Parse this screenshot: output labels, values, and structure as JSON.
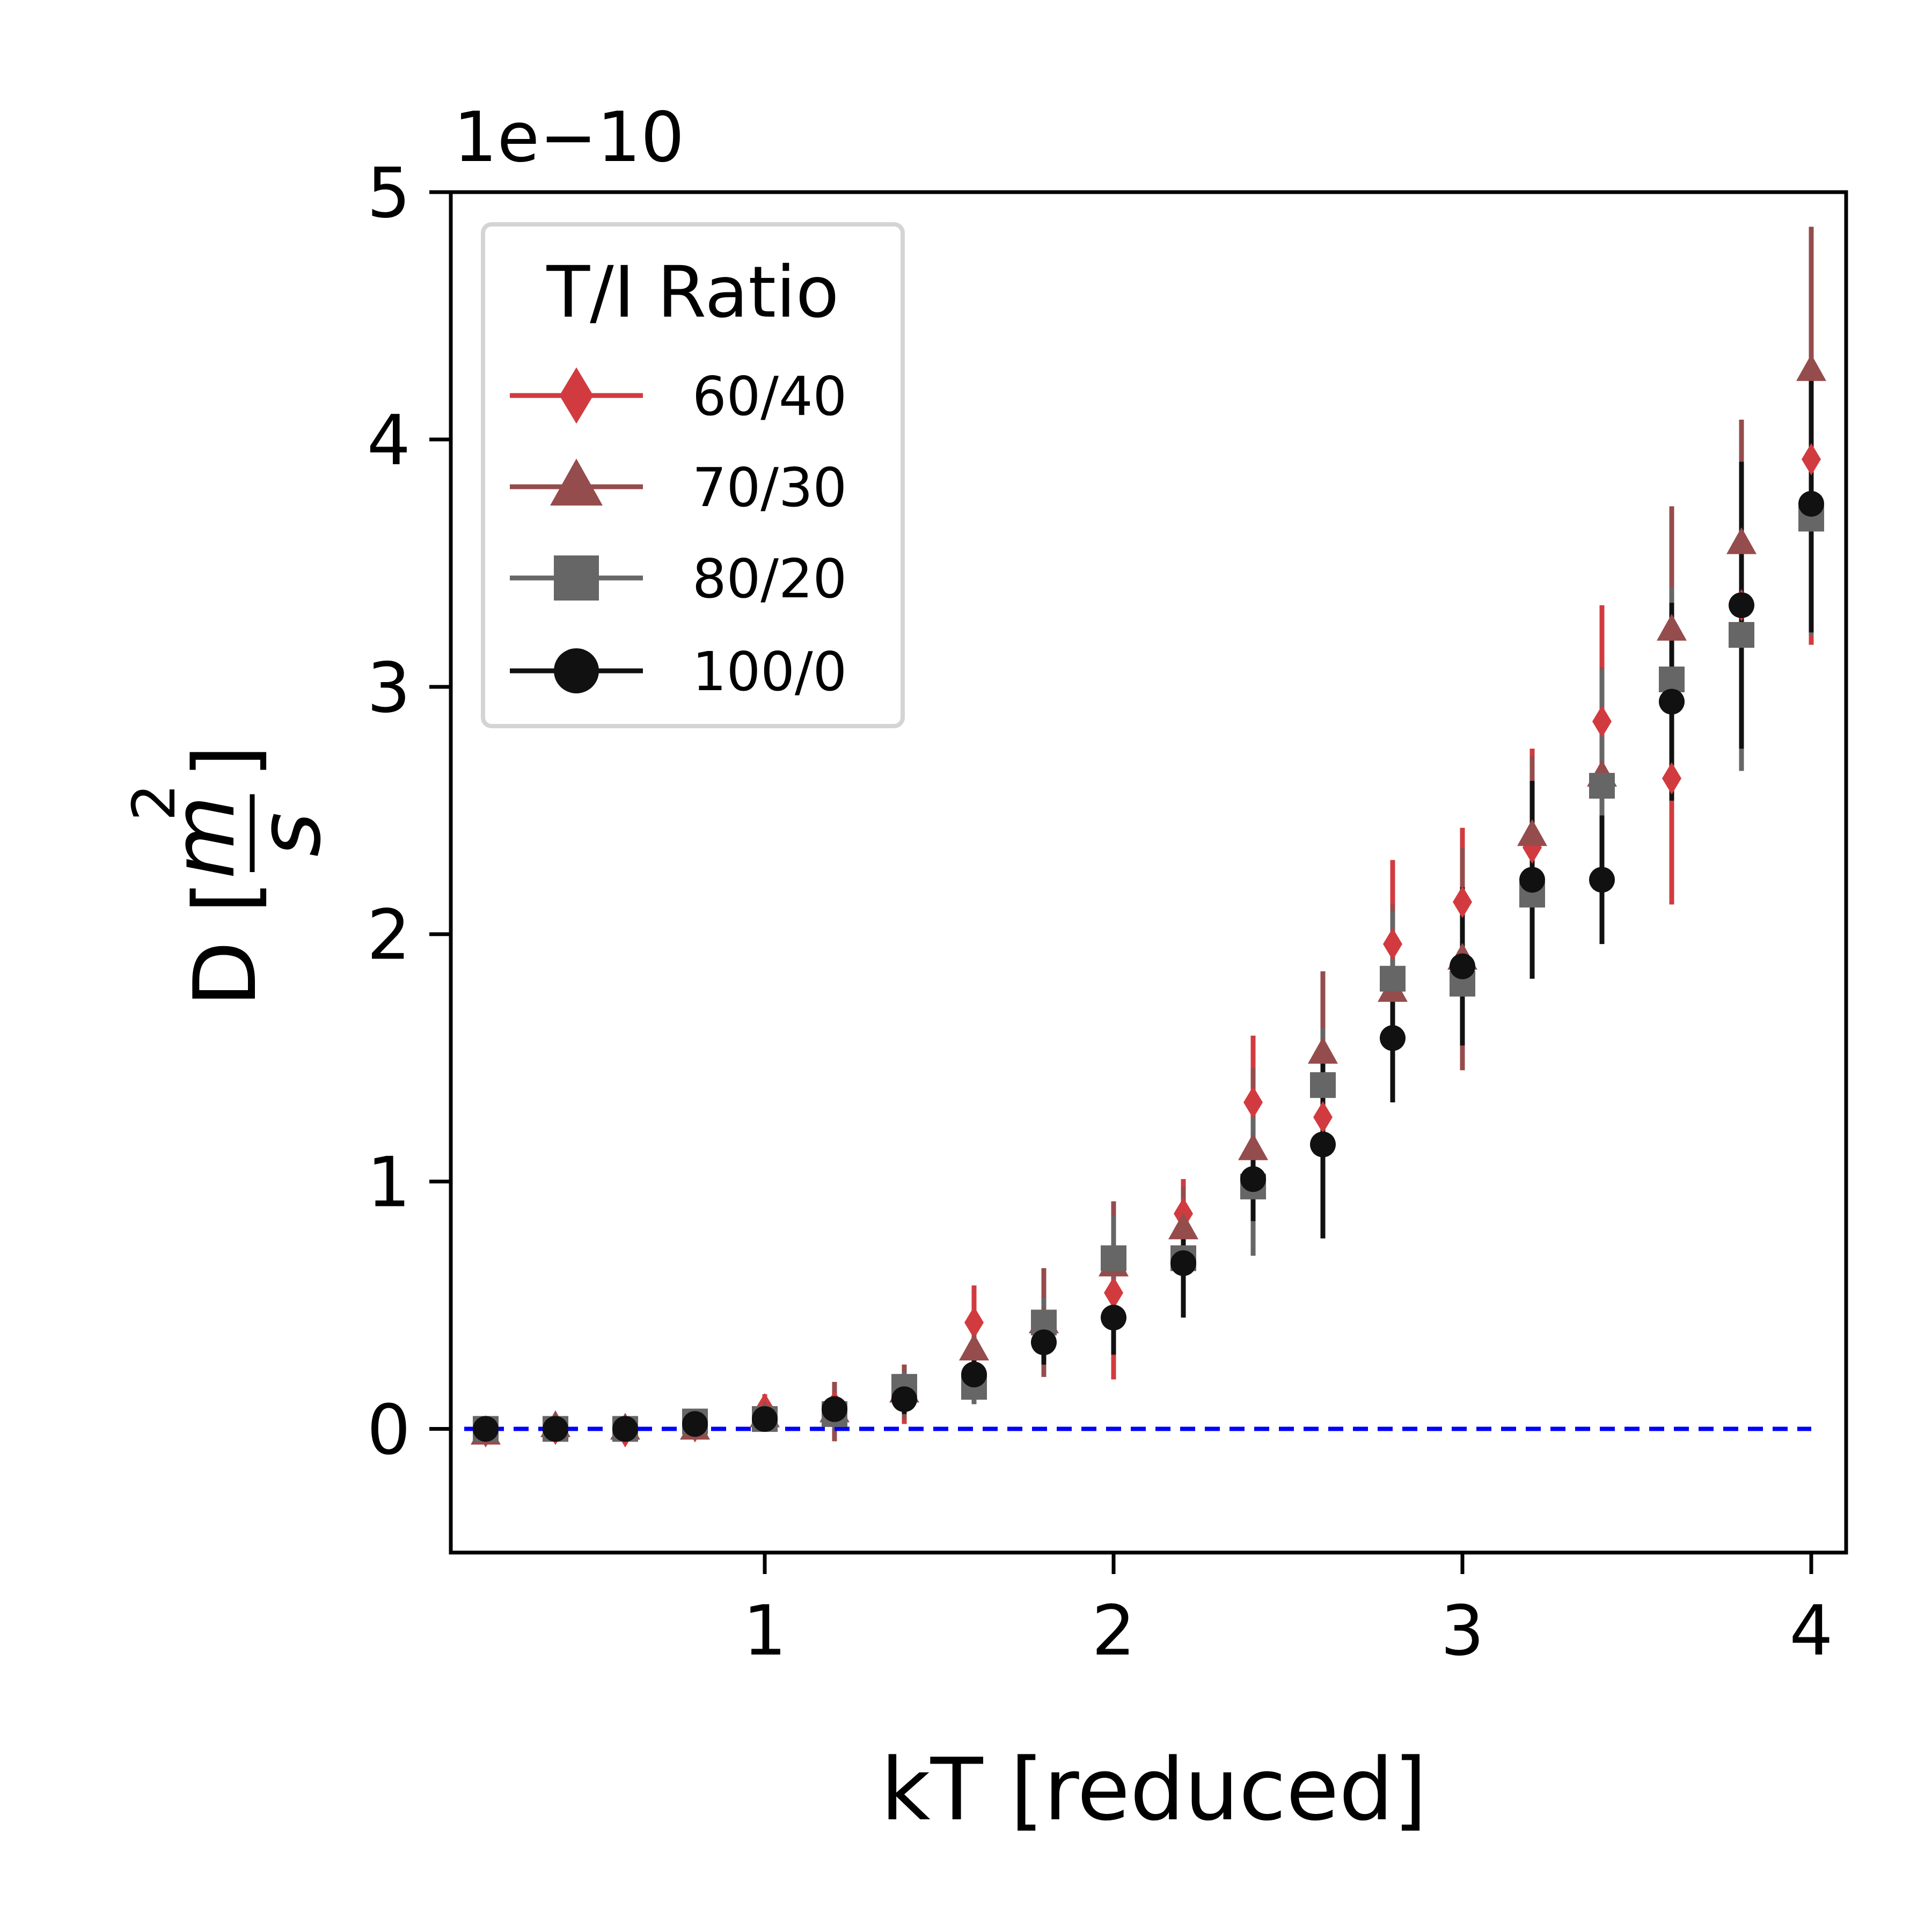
{
  "chart_data": {
    "type": "scatter",
    "xlabel": "kT [reduced]",
    "ylabel_prefix": "D [",
    "ylabel_fraction_numerator": "m",
    "ylabel_fraction_exponent": "2",
    "ylabel_fraction_denominator": "s",
    "ylabel_suffix": "]",
    "y_offset_label": "1e−10",
    "y_multiplier": 1e-10,
    "xlim": [
      0.1,
      4.1
    ],
    "ylim": [
      -0.5,
      5
    ],
    "xticks": [
      1,
      2,
      3,
      4
    ],
    "xtick_labels": [
      "1",
      "2",
      "3",
      "4"
    ],
    "yticks": [
      0,
      1,
      2,
      3,
      4,
      5
    ],
    "ytick_labels": [
      "0",
      "1",
      "2",
      "3",
      "4",
      "5"
    ],
    "grid": false,
    "legend": {
      "title": "T/I Ratio",
      "placement": "upper left"
    },
    "reference_line": {
      "y": 0,
      "style": "dashed",
      "color": "#0000ff"
    },
    "x": [
      0.2,
      0.4,
      0.6,
      0.8,
      1.0,
      1.2,
      1.4,
      1.6,
      1.8,
      2.0,
      2.2,
      2.4,
      2.6,
      2.8,
      3.0,
      3.2,
      3.4,
      3.6,
      3.8,
      4.0
    ],
    "series": [
      {
        "name": "60/40",
        "marker": "diamond",
        "color": "#d13b3f",
        "values": [
          -0.01,
          0.0,
          -0.01,
          0.01,
          0.08,
          0.09,
          0.14,
          0.43,
          0.42,
          0.55,
          0.87,
          1.32,
          1.26,
          1.96,
          2.13,
          2.35,
          2.86,
          2.63,
          3.33,
          3.92
        ],
        "errors": [
          0.04,
          0.04,
          0.04,
          0.04,
          0.06,
          0.1,
          0.12,
          0.15,
          0.2,
          0.35,
          0.14,
          0.27,
          0.18,
          0.34,
          0.3,
          0.4,
          0.47,
          0.51,
          0.4,
          0.75
        ]
      },
      {
        "name": "70/30",
        "marker": "triangle",
        "color": "#954c4c",
        "values": [
          -0.02,
          0.01,
          0.0,
          0.0,
          0.05,
          0.07,
          0.15,
          0.32,
          0.43,
          0.66,
          0.81,
          1.13,
          1.52,
          1.77,
          1.9,
          2.4,
          2.64,
          3.23,
          3.58,
          4.28
        ],
        "errors": [
          0.04,
          0.04,
          0.04,
          0.04,
          0.05,
          0.12,
          0.11,
          0.12,
          0.22,
          0.26,
          0.17,
          0.33,
          0.33,
          0.35,
          0.45,
          0.32,
          0.44,
          0.5,
          0.5,
          0.58
        ]
      },
      {
        "name": "80/20",
        "marker": "square",
        "color": "#666666",
        "values": [
          0.0,
          0.0,
          0.0,
          0.03,
          0.04,
          0.06,
          0.17,
          0.17,
          0.43,
          0.69,
          0.69,
          0.98,
          1.39,
          1.82,
          1.8,
          2.16,
          2.6,
          3.03,
          3.21,
          3.68
        ],
        "errors": [
          0.03,
          0.03,
          0.03,
          0.03,
          0.04,
          0.06,
          0.06,
          0.07,
          0.1,
          0.17,
          0.14,
          0.28,
          0.23,
          0.27,
          0.2,
          0.28,
          0.47,
          0.37,
          0.55,
          0.47
        ]
      },
      {
        "name": "100/0",
        "marker": "circle",
        "color": "#111111",
        "values": [
          0.0,
          0.0,
          0.0,
          0.02,
          0.04,
          0.08,
          0.12,
          0.22,
          0.35,
          0.45,
          0.67,
          1.01,
          1.15,
          1.58,
          1.87,
          2.22,
          2.22,
          2.94,
          3.33,
          3.74
        ],
        "errors": [
          0.03,
          0.03,
          0.03,
          0.03,
          0.04,
          0.05,
          0.06,
          0.07,
          0.09,
          0.15,
          0.22,
          0.17,
          0.38,
          0.26,
          0.32,
          0.4,
          0.26,
          0.4,
          0.58,
          0.52
        ]
      }
    ]
  }
}
